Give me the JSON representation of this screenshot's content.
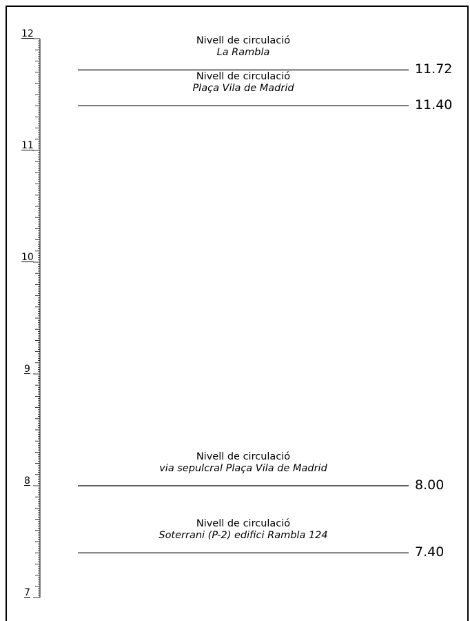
{
  "scale": {
    "min": 7,
    "max": 12,
    "labels": [
      "12",
      "11",
      "10",
      "9",
      "8",
      "7"
    ],
    "minor_ticks_per_unit": 50,
    "major_ticks_per_unit": 10
  },
  "levels": [
    {
      "title": "Nivell de circulació",
      "subtitle": "La Rambla",
      "elevation_label": "11.72",
      "elevation": 11.72
    },
    {
      "title": "Nivell de circulació",
      "subtitle": "Plaça Vila de Madrid",
      "elevation_label": "11.40",
      "elevation": 11.4
    },
    {
      "title": "Nivell de circulació",
      "subtitle": "via sepulcral Plaça Vila de Madrid",
      "elevation_label": "8.00",
      "elevation": 8.0
    },
    {
      "title": "Nivell de circulació",
      "subtitle": "Soterrani (P-2) edifici Rambla 124",
      "elevation_label": "7.40",
      "elevation": 7.4
    }
  ],
  "colors": {
    "ink": "#000000",
    "paper": "#ffffff"
  }
}
